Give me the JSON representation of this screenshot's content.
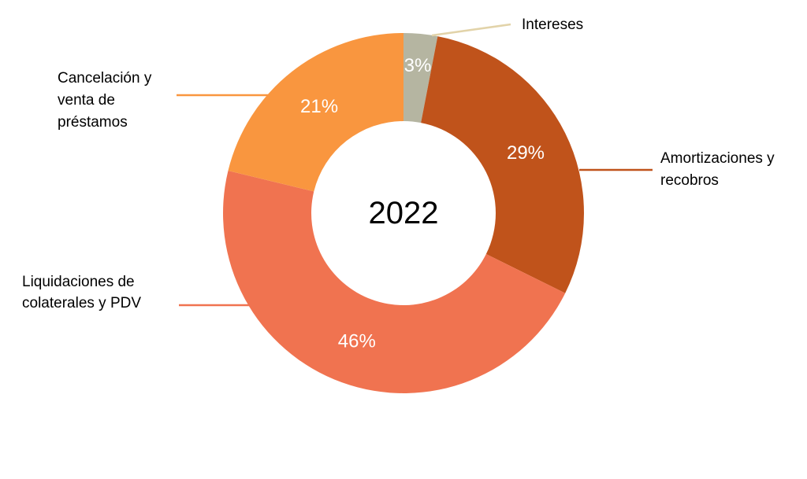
{
  "chart_data": {
    "type": "pie",
    "center_label": "2022",
    "slices": [
      {
        "name": "Intereses",
        "value": 3,
        "label": "3%",
        "color": "#B5B5A1",
        "leader_color": "#E2D3A9",
        "category_lines": [
          "Intereses"
        ]
      },
      {
        "name": "Amortizaciones y recobros",
        "value": 29,
        "label": "29%",
        "color": "#C0531B",
        "leader_color": "#C0531B",
        "category_lines": [
          "Amortizaciones y",
          "recobros"
        ]
      },
      {
        "name": "Liquidaciones de colaterales y PDV",
        "value": 46,
        "label": "46%",
        "color": "#F07350",
        "leader_color": "#F07350",
        "category_lines": [
          "Liquidaciones de",
          "colaterales y PDV"
        ]
      },
      {
        "name": "Cancelación y venta de préstamos",
        "value": 21,
        "label": "21%",
        "color": "#F9963F",
        "leader_color": "#F9963F",
        "category_lines": [
          "Cancelación y",
          "venta de",
          "préstamos"
        ]
      }
    ],
    "legend": "none"
  }
}
